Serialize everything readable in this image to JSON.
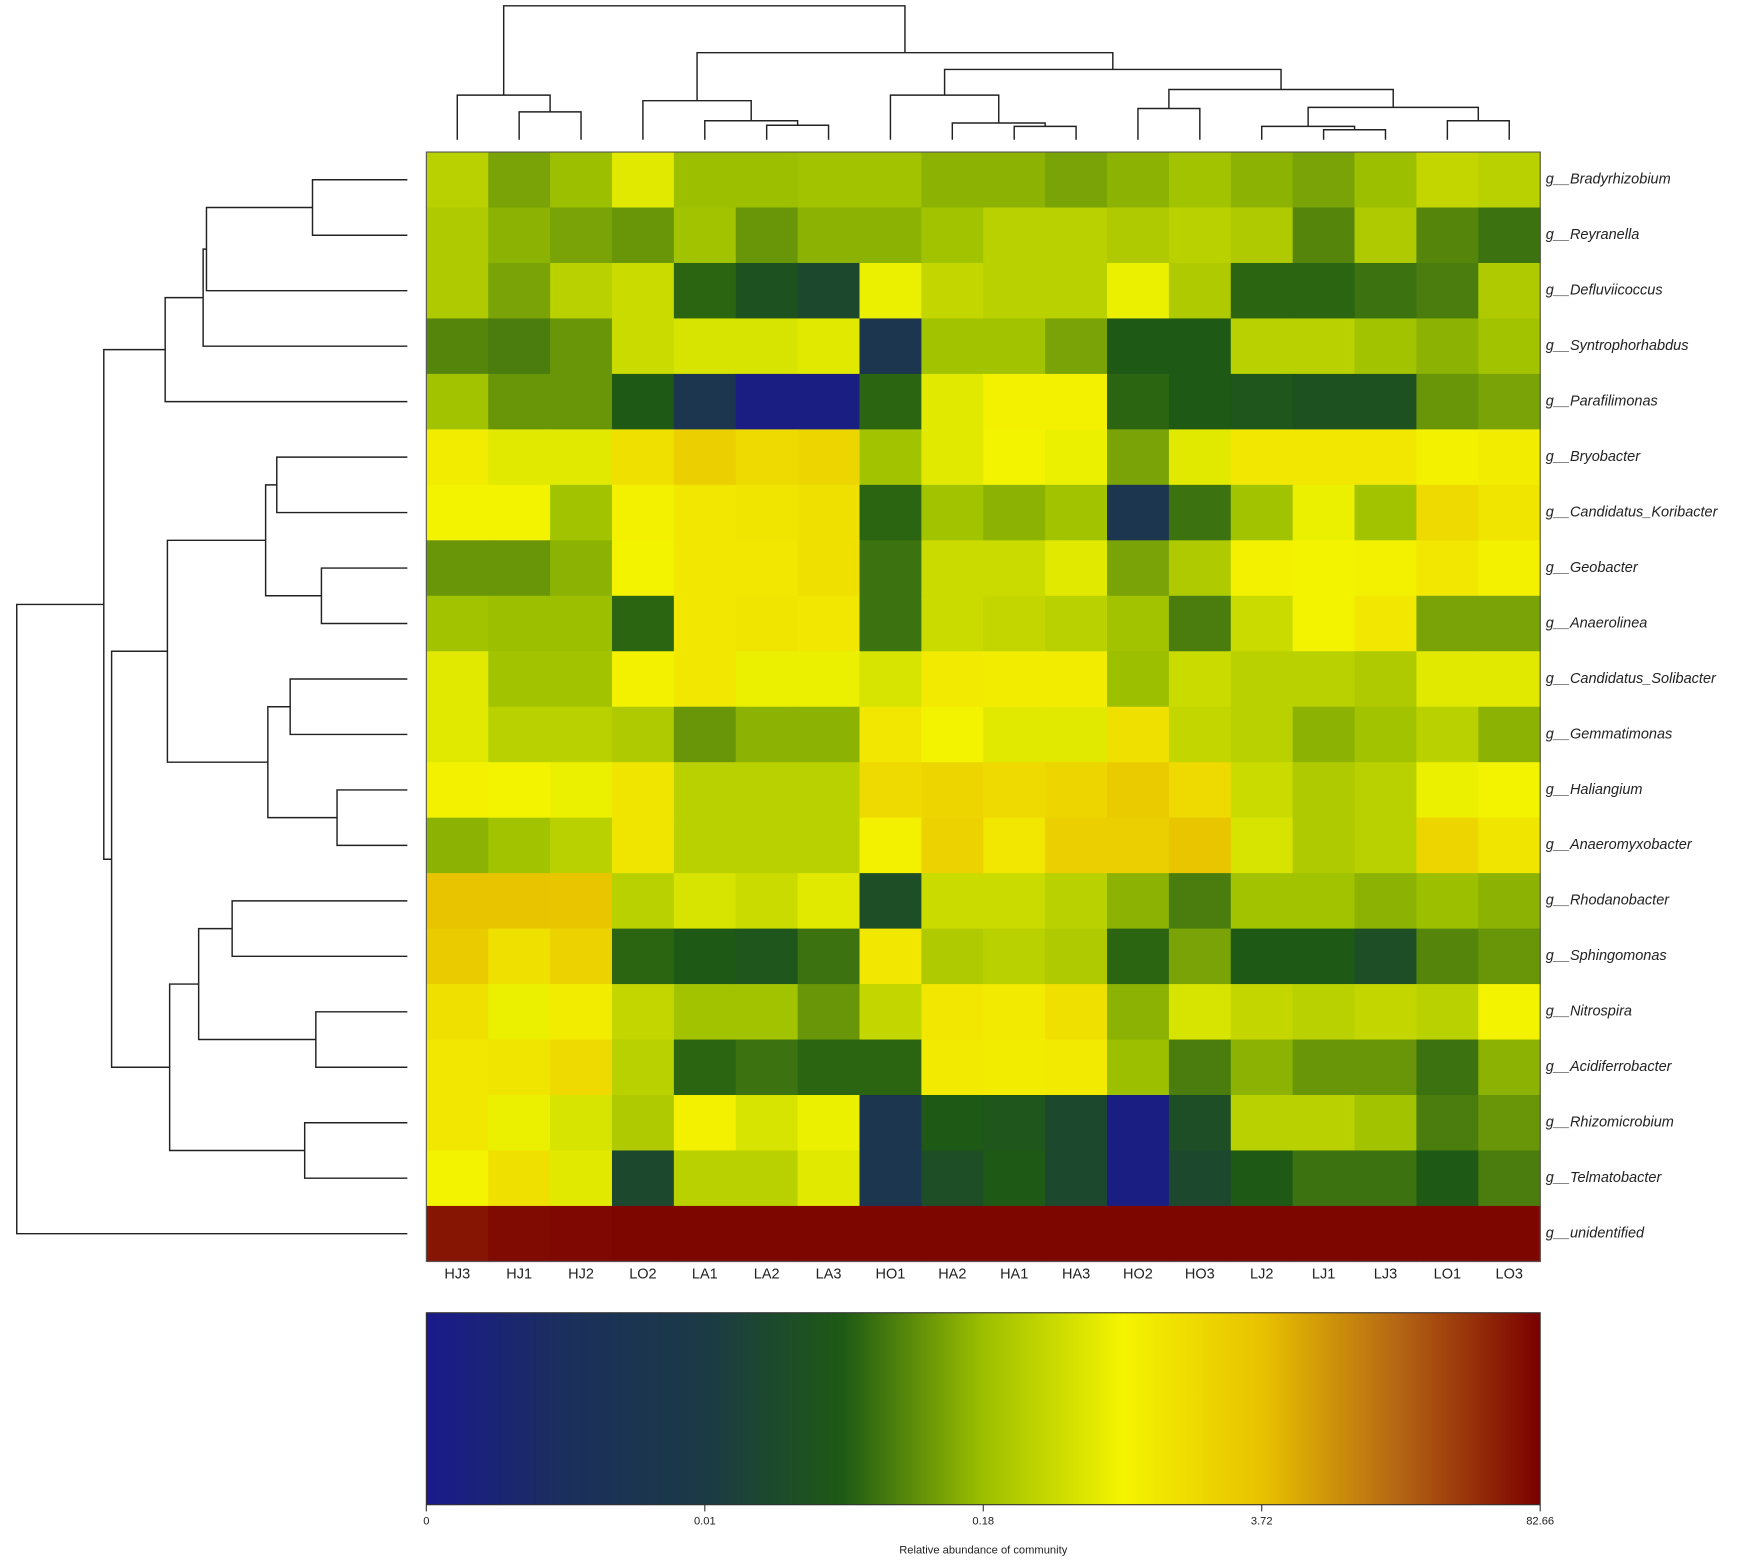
{
  "chart_data": {
    "type": "heatmap",
    "x": [
      "HJ3",
      "HJ1",
      "HJ2",
      "LO2",
      "LA1",
      "LA2",
      "LA3",
      "HO1",
      "HA2",
      "HA1",
      "HA3",
      "HO2",
      "HO3",
      "LJ2",
      "LJ1",
      "LJ3",
      "LO1",
      "LO3"
    ],
    "y": [
      "g__Bradyrhizobium",
      "g__Reyranella",
      "g__Defluviicoccus",
      "g__Syntrophorhabdus",
      "g__Parafilimonas",
      "g__Bryobacter",
      "g__Candidatus_Koribacter",
      "g__Geobacter",
      "g__Anaerolinea",
      "g__Candidatus_Solibacter",
      "g__Gemmatimonas",
      "g__Haliangium",
      "g__Anaeromyxobacter",
      "g__Rhodanobacter",
      "g__Sphingomonas",
      "g__Nitrospira",
      "g__Acidiferrobacter",
      "g__Rhizomicrobium",
      "g__Telmatobacter",
      "g__unidentified"
    ],
    "values": [
      [
        0.3,
        0.12,
        0.18,
        0.6,
        0.18,
        0.18,
        0.2,
        0.2,
        0.15,
        0.15,
        0.12,
        0.15,
        0.2,
        0.15,
        0.12,
        0.18,
        0.35,
        0.3
      ],
      [
        0.25,
        0.15,
        0.12,
        0.1,
        0.2,
        0.1,
        0.15,
        0.15,
        0.2,
        0.3,
        0.3,
        0.25,
        0.3,
        0.25,
        0.08,
        0.25,
        0.08,
        0.06
      ],
      [
        0.25,
        0.12,
        0.3,
        0.4,
        0.05,
        0.03,
        0.02,
        0.7,
        0.35,
        0.3,
        0.3,
        0.7,
        0.25,
        0.05,
        0.05,
        0.06,
        0.07,
        0.25
      ],
      [
        0.08,
        0.07,
        0.1,
        0.4,
        0.5,
        0.5,
        0.6,
        0.008,
        0.2,
        0.2,
        0.12,
        0.04,
        0.04,
        0.3,
        0.3,
        0.2,
        0.15,
        0.2
      ],
      [
        0.2,
        0.1,
        0.1,
        0.04,
        0.008,
        0.001,
        0.001,
        0.05,
        0.6,
        0.9,
        0.9,
        0.05,
        0.04,
        0.035,
        0.03,
        0.03,
        0.1,
        0.12
      ],
      [
        1.0,
        0.6,
        0.6,
        1.5,
        2.5,
        1.8,
        2.0,
        0.2,
        0.6,
        0.8,
        0.7,
        0.12,
        0.6,
        1.2,
        1.2,
        1.2,
        0.9,
        1.0
      ],
      [
        0.8,
        0.8,
        0.2,
        0.9,
        1.2,
        1.3,
        1.5,
        0.05,
        0.2,
        0.15,
        0.2,
        0.008,
        0.06,
        0.2,
        0.7,
        0.2,
        1.8,
        1.3
      ],
      [
        0.1,
        0.1,
        0.15,
        0.8,
        1.2,
        1.2,
        1.5,
        0.06,
        0.4,
        0.4,
        0.6,
        0.12,
        0.25,
        0.9,
        0.8,
        0.9,
        1.2,
        0.9
      ],
      [
        0.2,
        0.18,
        0.18,
        0.05,
        1.2,
        1.3,
        1.2,
        0.06,
        0.4,
        0.35,
        0.3,
        0.2,
        0.07,
        0.4,
        0.8,
        1.2,
        0.12,
        0.12
      ],
      [
        0.6,
        0.2,
        0.2,
        0.9,
        1.2,
        0.7,
        0.7,
        0.5,
        1.1,
        1.0,
        1.0,
        0.18,
        0.4,
        0.3,
        0.3,
        0.25,
        0.6,
        0.6
      ],
      [
        0.6,
        0.3,
        0.3,
        0.25,
        0.1,
        0.15,
        0.15,
        1.2,
        0.8,
        0.6,
        0.6,
        1.5,
        0.35,
        0.3,
        0.15,
        0.2,
        0.3,
        0.15
      ],
      [
        0.9,
        0.8,
        0.7,
        1.3,
        0.3,
        0.3,
        0.3,
        1.8,
        2.0,
        1.8,
        2.0,
        2.8,
        1.8,
        0.4,
        0.25,
        0.3,
        0.7,
        0.8
      ],
      [
        0.15,
        0.2,
        0.3,
        1.3,
        0.3,
        0.3,
        0.3,
        0.9,
        2.2,
        1.2,
        2.5,
        2.5,
        3.4,
        0.5,
        0.25,
        0.3,
        2.0,
        1.3
      ],
      [
        3.5,
        3.5,
        3.4,
        0.3,
        0.5,
        0.4,
        0.6,
        0.025,
        0.4,
        0.4,
        0.3,
        0.15,
        0.07,
        0.2,
        0.2,
        0.15,
        0.18,
        0.15
      ],
      [
        2.8,
        1.5,
        2.2,
        0.05,
        0.04,
        0.035,
        0.06,
        1.2,
        0.25,
        0.3,
        0.25,
        0.05,
        0.12,
        0.04,
        0.04,
        0.025,
        0.08,
        0.1
      ],
      [
        1.5,
        0.7,
        1.0,
        0.35,
        0.2,
        0.2,
        0.1,
        0.35,
        1.2,
        1.1,
        1.5,
        0.15,
        0.5,
        0.35,
        0.3,
        0.35,
        0.3,
        0.8
      ],
      [
        1.2,
        1.3,
        1.8,
        0.3,
        0.05,
        0.06,
        0.05,
        0.05,
        1.1,
        1.0,
        1.1,
        0.18,
        0.07,
        0.15,
        0.1,
        0.1,
        0.06,
        0.15
      ],
      [
        1.2,
        0.7,
        0.5,
        0.25,
        0.9,
        0.5,
        0.7,
        0.008,
        0.04,
        0.035,
        0.02,
        0.001,
        0.025,
        0.3,
        0.3,
        0.2,
        0.07,
        0.1
      ],
      [
        0.8,
        1.5,
        0.6,
        0.02,
        0.3,
        0.3,
        0.6,
        0.008,
        0.025,
        0.04,
        0.02,
        0.001,
        0.02,
        0.04,
        0.06,
        0.06,
        0.04,
        0.07
      ],
      [
        60,
        70,
        72,
        75,
        75,
        75,
        75,
        75,
        75,
        75,
        75,
        75,
        75,
        75,
        75,
        75,
        75,
        75
      ]
    ],
    "colorscale": [
      "#1a1a8c",
      "#1b2f5c",
      "#1b3a45",
      "#1e5a14",
      "#9cbf00",
      "#f4f400",
      "#e8c200",
      "#b46414",
      "#7a0000"
    ],
    "colorbar_ticks": [
      0,
      0.01,
      0.18,
      3.72,
      82.66
    ],
    "colorbar_label": "Relative abundance of community"
  }
}
